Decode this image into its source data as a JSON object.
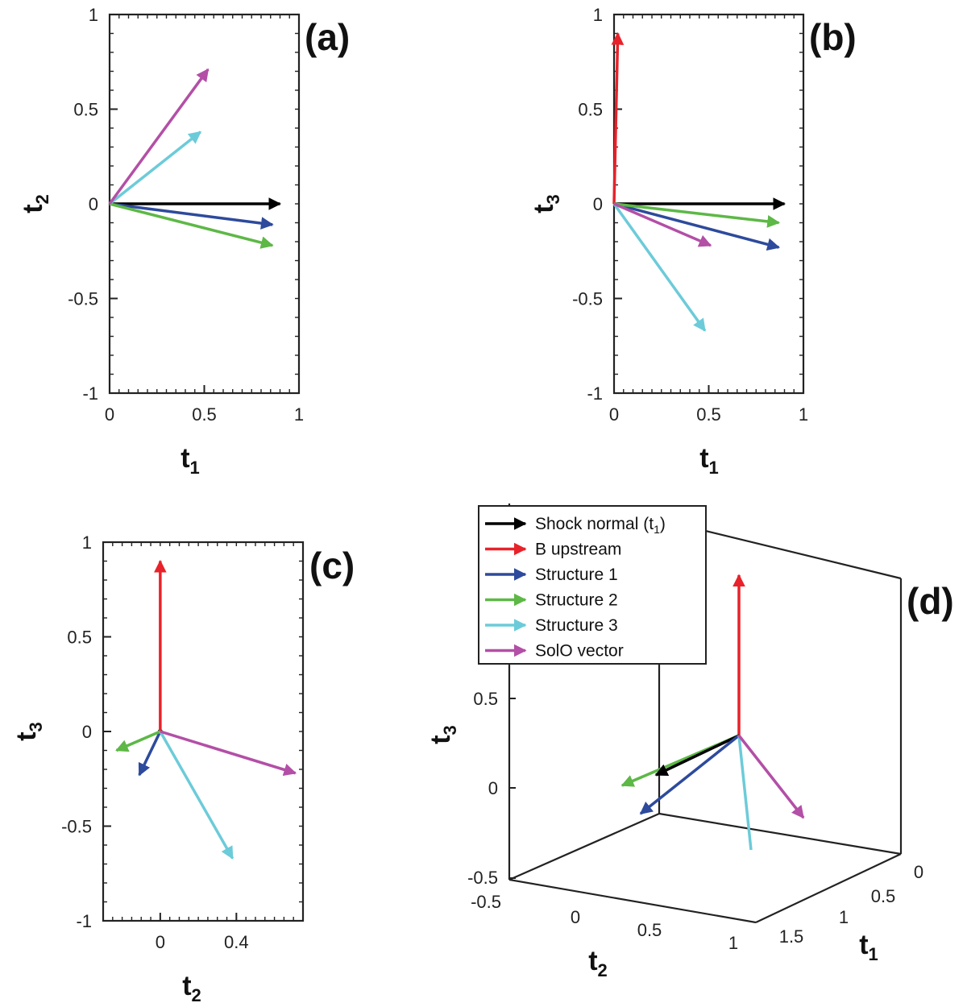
{
  "colors": {
    "shock_normal": "#000000",
    "b_upstream": "#e8222a",
    "structure1": "#2d4a9c",
    "structure2": "#5db846",
    "structure3": "#6ccbd9",
    "solo": "#b34fa6"
  },
  "legend": {
    "items": [
      {
        "label": "Shock normal (t",
        "sub": "1",
        "tail": ")",
        "color_key": "shock_normal"
      },
      {
        "label": "B upstream",
        "color_key": "b_upstream"
      },
      {
        "label": "Structure 1",
        "color_key": "structure1"
      },
      {
        "label": "Structure 2",
        "color_key": "structure2"
      },
      {
        "label": "Structure 3",
        "color_key": "structure3"
      },
      {
        "label": "SolO vector",
        "color_key": "solo"
      }
    ]
  },
  "chart_data": [
    {
      "type": "quiver",
      "panel_label": "(a)",
      "xlabel": "t",
      "xlabel_sub": "1",
      "ylabel": "t",
      "ylabel_sub": "2",
      "xlim": [
        0,
        1
      ],
      "ylim": [
        -1,
        1
      ],
      "xticks": [
        "0",
        "0.5",
        "1"
      ],
      "yticks": [
        "1",
        "0.5",
        "0",
        "-0.5",
        "-1"
      ],
      "vectors": [
        {
          "key": "shock_normal",
          "x": 0.9,
          "y": 0.0
        },
        {
          "key": "structure1",
          "x": 0.86,
          "y": -0.11
        },
        {
          "key": "structure2",
          "x": 0.86,
          "y": -0.22
        },
        {
          "key": "structure3",
          "x": 0.48,
          "y": 0.38
        },
        {
          "key": "solo",
          "x": 0.52,
          "y": 0.71
        }
      ]
    },
    {
      "type": "quiver",
      "panel_label": "(b)",
      "xlabel": "t",
      "xlabel_sub": "1",
      "ylabel": "t",
      "ylabel_sub": "3",
      "xlim": [
        0,
        1
      ],
      "ylim": [
        -1,
        1
      ],
      "xticks": [
        "0",
        "0.5",
        "1"
      ],
      "yticks": [
        "1",
        "0.5",
        "0",
        "-0.5",
        "-1"
      ],
      "vectors": [
        {
          "key": "shock_normal",
          "x": 0.9,
          "y": 0.0
        },
        {
          "key": "b_upstream",
          "x": 0.02,
          "y": 0.9
        },
        {
          "key": "structure1",
          "x": 0.87,
          "y": -0.23
        },
        {
          "key": "structure2",
          "x": 0.87,
          "y": -0.1
        },
        {
          "key": "structure3",
          "x": 0.48,
          "y": -0.67
        },
        {
          "key": "solo",
          "x": 0.51,
          "y": -0.22
        }
      ]
    },
    {
      "type": "quiver",
      "panel_label": "(c)",
      "xlabel": "t",
      "xlabel_sub": "2",
      "ylabel": "t",
      "ylabel_sub": "3",
      "xlim": [
        -0.3,
        0.75
      ],
      "ylim": [
        -1,
        1
      ],
      "xticks": [
        "0",
        "0.4"
      ],
      "yticks": [
        "1",
        "0.5",
        "0",
        "-0.5",
        "-1"
      ],
      "vectors": [
        {
          "key": "shock_normal",
          "x": 0.0,
          "y": 0.0
        },
        {
          "key": "b_upstream",
          "x": 0.0,
          "y": 0.9
        },
        {
          "key": "structure1",
          "x": -0.11,
          "y": -0.23
        },
        {
          "key": "structure2",
          "x": -0.23,
          "y": -0.1
        },
        {
          "key": "structure3",
          "x": 0.38,
          "y": -0.67
        },
        {
          "key": "solo",
          "x": 0.71,
          "y": -0.22
        }
      ]
    },
    {
      "type": "quiver3d",
      "panel_label": "(d)",
      "xlabel": "t",
      "xlabel_sub": "1",
      "ylabel": "t",
      "ylabel_sub": "2",
      "zlabel": "t",
      "zlabel_sub": "3",
      "t1_ticks": [
        "0",
        "0.5",
        "1",
        "1.5"
      ],
      "t2_ticks": [
        "-0.5",
        "0",
        "0.5",
        "1"
      ],
      "t3_ticks": [
        "0.5",
        "0",
        "-0.5"
      ]
    }
  ]
}
